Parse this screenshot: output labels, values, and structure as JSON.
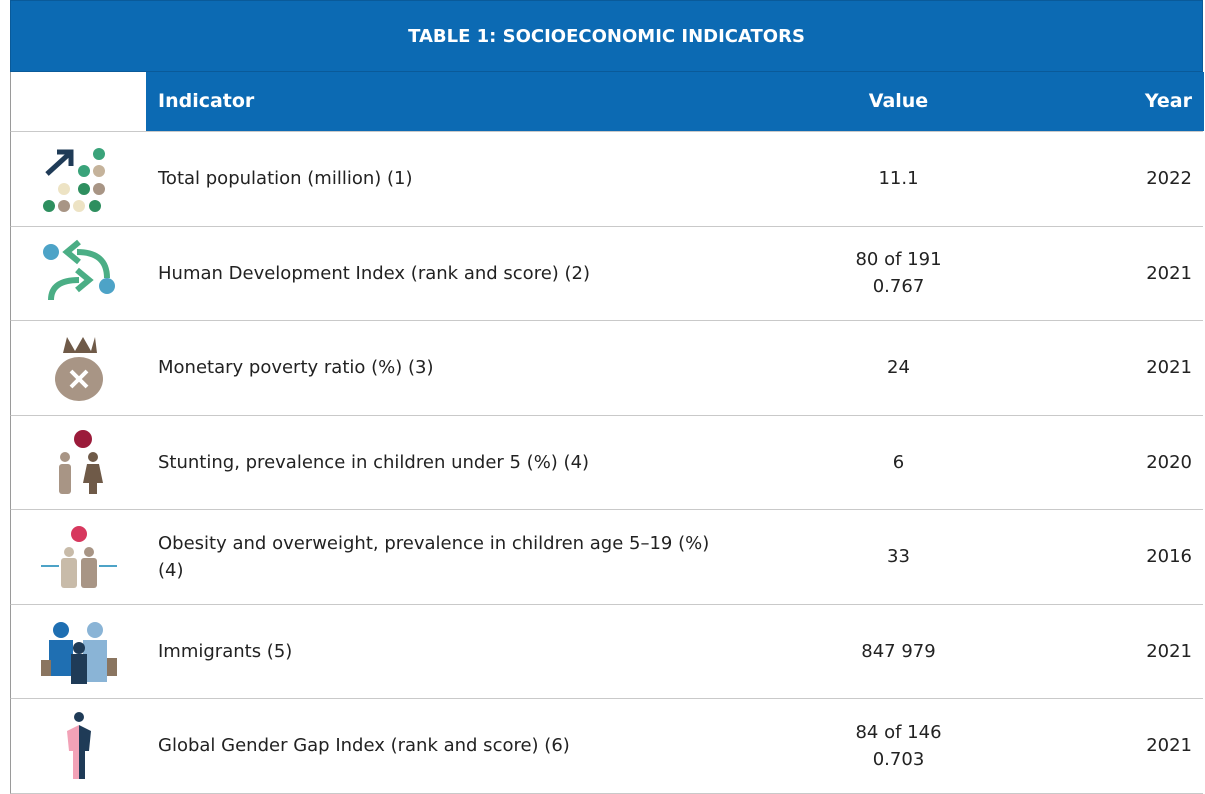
{
  "table": {
    "title": "TABLE 1: SOCIOECONOMIC INDICATORS",
    "header": [
      "Indicator",
      "Value",
      "Year"
    ],
    "rows": [
      [
        "Total population (million) (1)",
        [
          "11.1"
        ],
        "2022"
      ],
      [
        "Human Development Index (rank and score) (2)",
        [
          "80 of 191",
          "0.767"
        ],
        "2021"
      ],
      [
        "Monetary poverty ratio (%) (3)",
        [
          "24"
        ],
        "2021"
      ],
      [
        "Stunting, prevalence in children under 5 (%) (4)",
        [
          "6"
        ],
        "2020"
      ],
      [
        "Obesity and overweight, prevalence in children age 5–19 (%) (4)",
        [
          "33"
        ],
        "2016"
      ],
      [
        "Immigrants (5)",
        [
          "847 979"
        ],
        "2021"
      ],
      [
        "Global Gender Gap Index (rank and score) (6)",
        [
          "84 of 146",
          "0.703"
        ],
        "2021"
      ]
    ]
  }
}
